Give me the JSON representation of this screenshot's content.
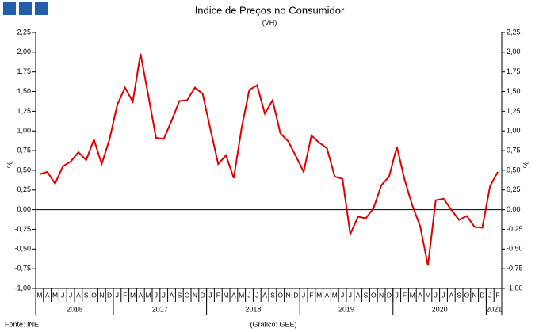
{
  "chart_data": {
    "type": "line",
    "title": "Índice de Preços no Consumidor",
    "subtitle": "(VH)",
    "y_label": "%",
    "y2_label": "%",
    "categories": [
      "M",
      "A",
      "M",
      "J",
      "J",
      "A",
      "S",
      "O",
      "N",
      "D",
      "J",
      "F",
      "M",
      "A",
      "M",
      "J",
      "J",
      "A",
      "S",
      "O",
      "N",
      "D",
      "J",
      "F",
      "M",
      "A",
      "M",
      "J",
      "J",
      "A",
      "S",
      "O",
      "N",
      "D",
      "J",
      "F",
      "M",
      "A",
      "M",
      "J",
      "J",
      "A",
      "S",
      "O",
      "N",
      "D",
      "J",
      "F",
      "M",
      "A",
      "M",
      "J",
      "J",
      "A",
      "S",
      "O",
      "N",
      "D",
      "J",
      "F"
    ],
    "years": [
      "2016",
      "2017",
      "2018",
      "2019",
      "2020",
      "2021"
    ],
    "series": [
      {
        "name": "IPC",
        "color": "#e00000",
        "values": [
          0.45,
          0.48,
          0.33,
          0.55,
          0.61,
          0.73,
          0.63,
          0.89,
          0.58,
          0.89,
          1.33,
          1.55,
          1.37,
          1.98,
          1.45,
          0.91,
          0.9,
          1.13,
          1.38,
          1.39,
          1.55,
          1.47,
          1.02,
          0.58,
          0.69,
          0.4,
          1.03,
          1.52,
          1.58,
          1.22,
          1.39,
          0.97,
          0.87,
          0.68,
          0.48,
          0.94,
          0.85,
          0.78,
          0.42,
          0.39,
          -0.31,
          -0.09,
          -0.11,
          0.02,
          0.31,
          0.42,
          0.8,
          0.38,
          0.05,
          -0.21,
          -0.71,
          0.12,
          0.14,
          0.0,
          -0.13,
          -0.08,
          -0.22,
          -0.23,
          0.3,
          0.48
        ]
      }
    ],
    "ylim": [
      -1,
      2.25
    ],
    "yticks": [
      {
        "value": -1,
        "label": "-1,00"
      },
      {
        "value": -0.75,
        "label": "-0,75"
      },
      {
        "value": -0.5,
        "label": "-0,50"
      },
      {
        "value": -0.25,
        "label": "-0,25"
      },
      {
        "value": 0,
        "label": "0,00"
      },
      {
        "value": 0.25,
        "label": "0,25"
      },
      {
        "value": 0.5,
        "label": "0,50"
      },
      {
        "value": 0.75,
        "label": "0,75"
      },
      {
        "value": 1,
        "label": "1,00"
      },
      {
        "value": 1.25,
        "label": "1,25"
      },
      {
        "value": 1.5,
        "label": "1,50"
      },
      {
        "value": 1.75,
        "label": "1,75"
      },
      {
        "value": 2,
        "label": "2,00"
      },
      {
        "value": 2.25,
        "label": "2,25"
      }
    ],
    "source": "Fonte: INE",
    "credit": "(Gráfico: GEE)",
    "grid": false
  }
}
